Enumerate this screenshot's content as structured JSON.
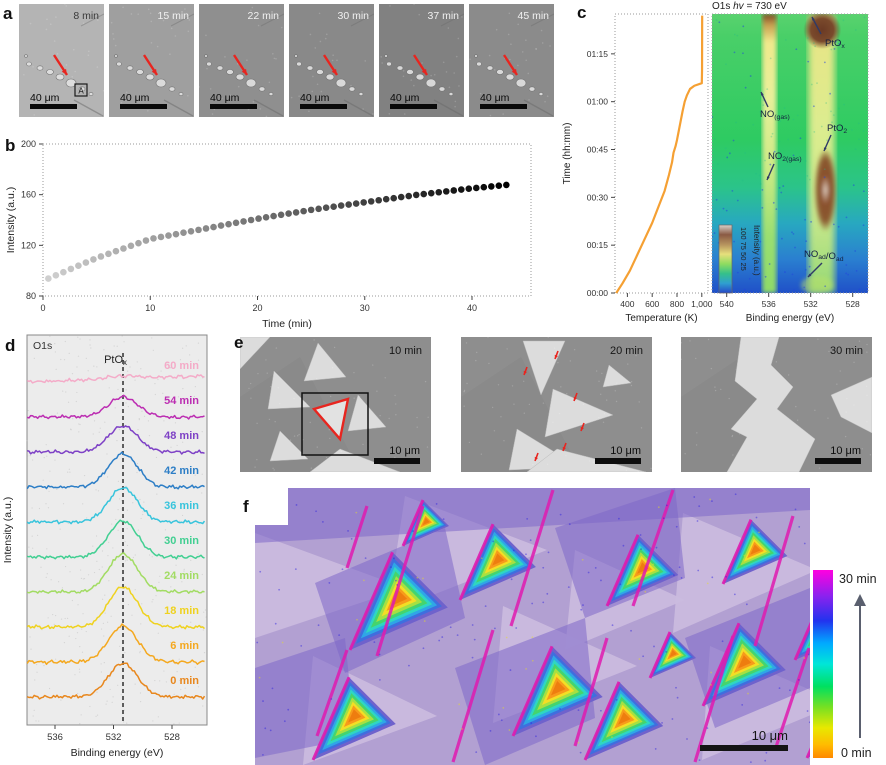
{
  "figure": {
    "panel_labels": {
      "a": "a",
      "b": "b",
      "c": "c",
      "d": "d",
      "e": "e",
      "f": "f"
    }
  },
  "panel_a": {
    "frames": [
      "8 min",
      "15 min",
      "22 min",
      "30 min",
      "37 min",
      "45 min"
    ],
    "scale_bar": "40 μm",
    "region_marker": "A",
    "frame_shades": [
      "#b4b4b4",
      "#9f9f9f",
      "#8f8f8f",
      "#898989",
      "#818181",
      "#8b8b8b"
    ],
    "time_text_colors": [
      "#3a3a3a",
      "#f0f0f0",
      "#f0f0f0",
      "#f0f0f0",
      "#f0f0f0",
      "#f0f0f0"
    ],
    "arrow_color": "#e8251f"
  },
  "panel_e": {
    "frames": [
      "10 min",
      "20 min",
      "30 min"
    ],
    "scale_bar": "10 μm",
    "bg": "#8e8e8e",
    "island_color": "#dcdcdc",
    "marker_color": "#e8251f"
  },
  "panel_f": {
    "scale_bar": "10 μm",
    "colorbar_top": "30 min",
    "colorbar_bottom": "0 min"
  },
  "chart_data": [
    {
      "id": "b_intensity",
      "type": "scatter",
      "xlabel": "Time (min)",
      "ylabel": "Intensity (a.u.)",
      "xlim": [
        0,
        45.5
      ],
      "ylim": [
        80,
        200
      ],
      "xticks": [
        0,
        10,
        20,
        30,
        40
      ],
      "yticks": [
        80,
        120,
        160,
        200
      ],
      "grid": false,
      "point_gradient": [
        "#cfcfcf",
        "#000000"
      ],
      "points": [
        [
          0.5,
          93.8
        ],
        [
          1.2,
          96.3
        ],
        [
          1.9,
          98.8
        ],
        [
          2.6,
          101.4
        ],
        [
          3.3,
          103.9
        ],
        [
          4,
          106.4
        ],
        [
          4.7,
          108.9
        ],
        [
          5.4,
          111.2
        ],
        [
          6.1,
          113.3
        ],
        [
          6.8,
          115.4
        ],
        [
          7.5,
          117.5
        ],
        [
          8.2,
          119.6
        ],
        [
          8.9,
          121.7
        ],
        [
          9.6,
          123.8
        ],
        [
          10.3,
          125.5
        ],
        [
          11,
          126.6
        ],
        [
          11.7,
          127.7
        ],
        [
          12.4,
          128.8
        ],
        [
          13.1,
          130
        ],
        [
          13.8,
          131.1
        ],
        [
          14.5,
          132.2
        ],
        [
          15.2,
          133.3
        ],
        [
          15.9,
          134.4
        ],
        [
          16.6,
          135.6
        ],
        [
          17.3,
          136.7
        ],
        [
          18,
          137.8
        ],
        [
          18.7,
          138.9
        ],
        [
          19.4,
          140
        ],
        [
          20.1,
          141.1
        ],
        [
          20.8,
          142.1
        ],
        [
          21.5,
          143.1
        ],
        [
          22.2,
          144.1
        ],
        [
          22.9,
          145.1
        ],
        [
          23.6,
          146
        ],
        [
          24.3,
          147
        ],
        [
          25,
          148
        ],
        [
          25.7,
          148.8
        ],
        [
          26.4,
          149.7
        ],
        [
          27.1,
          150.5
        ],
        [
          27.8,
          151.4
        ],
        [
          28.5,
          152.2
        ],
        [
          29.2,
          153
        ],
        [
          29.9,
          153.9
        ],
        [
          30.6,
          154.7
        ],
        [
          31.3,
          155.6
        ],
        [
          32,
          156.4
        ],
        [
          32.7,
          157.2
        ],
        [
          33.4,
          158.1
        ],
        [
          34.1,
          158.9
        ],
        [
          34.8,
          159.8
        ],
        [
          35.5,
          160.5
        ],
        [
          36.2,
          161.2
        ],
        [
          36.9,
          161.9
        ],
        [
          37.6,
          162.6
        ],
        [
          38.3,
          163.3
        ],
        [
          39,
          164
        ],
        [
          39.7,
          164.7
        ],
        [
          40.4,
          165.3
        ],
        [
          41.1,
          165.9
        ],
        [
          41.8,
          166.5
        ],
        [
          42.5,
          167.1
        ],
        [
          43.2,
          167.7
        ]
      ]
    },
    {
      "id": "c_temperature",
      "type": "line",
      "xlabel": "Temperature (K)",
      "ylabel": "Time (hh:mm)",
      "xlim": [
        300,
        1050
      ],
      "ylim_minutes": [
        0,
        87.5
      ],
      "xticks": [
        "400",
        "600",
        "800",
        "1,000"
      ],
      "xtick_values": [
        400,
        600,
        800,
        1000
      ],
      "yticks": [
        "00:00",
        "00:15",
        "00:30",
        "00:45",
        "01:00",
        "01:15"
      ],
      "ytick_minutes": [
        0,
        15,
        30,
        45,
        60,
        75
      ],
      "line_color": "#f5a033",
      "points": [
        [
          310,
          0
        ],
        [
          360,
          3
        ],
        [
          420,
          7
        ],
        [
          480,
          12
        ],
        [
          540,
          17
        ],
        [
          600,
          22
        ],
        [
          650,
          27
        ],
        [
          700,
          32
        ],
        [
          735,
          37
        ],
        [
          760,
          41
        ],
        [
          772,
          44
        ],
        [
          788,
          46
        ],
        [
          800,
          48
        ],
        [
          815,
          51
        ],
        [
          830,
          54
        ],
        [
          845,
          57
        ],
        [
          862,
          60
        ],
        [
          880,
          62
        ],
        [
          905,
          64
        ],
        [
          940,
          65
        ],
        [
          1000,
          65.8
        ],
        [
          1002,
          70
        ],
        [
          1003,
          87
        ]
      ]
    },
    {
      "id": "c_heatmap",
      "type": "heatmap",
      "title_parts": [
        "O1s ",
        "hv",
        " = 730 eV"
      ],
      "xlabel": "Binding energy (eV)",
      "xticks": [
        "540",
        "536",
        "532",
        "528"
      ],
      "xtick_values": [
        540,
        536,
        532,
        528
      ],
      "colorbar": {
        "label": "Intensity (a.u.)",
        "ticks": [
          "100",
          "75",
          "50",
          "25"
        ],
        "colors_top_to_bottom": [
          "#d8d0ca",
          "#8a5a44",
          "#b5925e",
          "#e6df7c",
          "#8fdc60",
          "#35c08a",
          "#2f9fd0",
          "#2648c8"
        ]
      },
      "annotations": [
        {
          "segments": [
            {
              "t": "PtO"
            },
            {
              "t": "x",
              "sub": true
            }
          ],
          "x": 113,
          "y": 46,
          "arrow": [
            109,
            34,
            100,
            17
          ]
        },
        {
          "segments": [
            {
              "t": "NO"
            },
            {
              "t": "(gas)",
              "sub": true
            }
          ],
          "x": 48,
          "y": 117,
          "arrow": [
            56,
            107,
            49,
            92
          ]
        },
        {
          "segments": [
            {
              "t": "PtO"
            },
            {
              "t": "2",
              "sub": true
            }
          ],
          "x": 115,
          "y": 131,
          "arrow": [
            119,
            135,
            112,
            151
          ]
        },
        {
          "segments": [
            {
              "t": "NO"
            },
            {
              "t": "2(gas)",
              "sub": true
            }
          ],
          "x": 56,
          "y": 159,
          "arrow": [
            62,
            164,
            55,
            180
          ]
        },
        {
          "segments": [
            {
              "t": "NO"
            },
            {
              "t": "ad",
              "sub": true
            },
            {
              "t": "/O"
            },
            {
              "t": "ad",
              "sub": true
            }
          ],
          "x": 92,
          "y": 257,
          "arrow": [
            110,
            263,
            96,
            277
          ]
        }
      ],
      "features": [
        "NO gas streak at ~536 eV",
        "PtOx ridge at ~531 eV, strong at high T",
        "PtO2 bright spot ~530.5 eV around 00:30-00:45",
        "NOad/Oad weak feature at ~529 eV near 00:00"
      ]
    },
    {
      "id": "d_spectra",
      "type": "line",
      "corner_label": "O1s",
      "peak_label_segments": [
        {
          "t": "PtO"
        },
        {
          "t": "x",
          "sub": true
        }
      ],
      "xlabel": "Binding energy (eV)",
      "ylabel": "Intensity (a.u.)",
      "xticks": [
        536,
        532,
        528
      ],
      "x_range": [
        537.9,
        525.7
      ],
      "dashed_line_x": 531.35,
      "peak_center": 531.35,
      "peak_sigma": 1.0,
      "series": [
        {
          "label": "0 min",
          "color": "#e8871d",
          "amp": 34,
          "tilt": 0
        },
        {
          "label": "6 min",
          "color": "#f4a81f",
          "amp": 36,
          "tilt": 0
        },
        {
          "label": "18 min",
          "color": "#efd21f",
          "amp": 40,
          "tilt": 0
        },
        {
          "label": "24 min",
          "color": "#a2dc63",
          "amp": 38,
          "tilt": 0
        },
        {
          "label": "30 min",
          "color": "#42cf92",
          "amp": 36,
          "tilt": 0
        },
        {
          "label": "36 min",
          "color": "#38c4dc",
          "amp": 34,
          "tilt": 0
        },
        {
          "label": "42 min",
          "color": "#2d7ec6",
          "amp": 33,
          "tilt": 0
        },
        {
          "label": "48 min",
          "color": "#7e41c6",
          "amp": 26,
          "tilt": 0
        },
        {
          "label": "54 min",
          "color": "#bc2eb2",
          "amp": 20,
          "tilt": 0
        },
        {
          "label": "60 min",
          "color": "#f4abc8",
          "amp": 3,
          "tilt": 0.5
        }
      ]
    },
    {
      "id": "f_timemap",
      "type": "heatmap",
      "description": "Color-coded growth-time map of triangular islands; color = time of coverage",
      "colorbar": {
        "top": "30 min",
        "bottom": "0 min",
        "colors_top_to_bottom": [
          "#ff00e0",
          "#8a22ee",
          "#2233ee",
          "#00aaff",
          "#00e6d8",
          "#00e060",
          "#77e022",
          "#e8e800",
          "#ffbb00",
          "#ff8800"
        ]
      },
      "scale_bar": "10 μm",
      "ring_colors_outer_to_core": [
        "#6f62cc",
        "#3f6ede",
        "#2fa6e6",
        "#2fd6c2",
        "#44d46e",
        "#a6e042",
        "#f4de25",
        "#f79b1b",
        "#ee7d0f"
      ],
      "boundary_color": "#e01bb0"
    }
  ]
}
